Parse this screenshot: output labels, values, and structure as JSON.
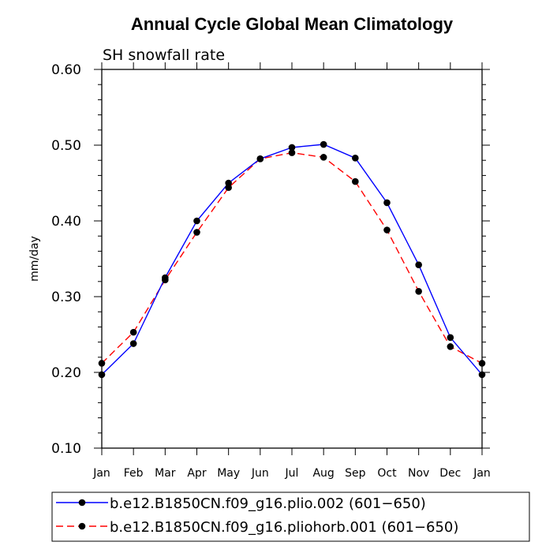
{
  "chart_data": {
    "type": "line",
    "title": "Annual Cycle Global Mean Climatology",
    "subtitle": "SH snowfall rate",
    "xlabel": "",
    "ylabel": "mm/day",
    "ylim": [
      0.1,
      0.6
    ],
    "yticks": [
      "0.10",
      "0.20",
      "0.30",
      "0.40",
      "0.50",
      "0.60"
    ],
    "categories": [
      "Jan",
      "Feb",
      "Mar",
      "Apr",
      "May",
      "Jun",
      "Jul",
      "Aug",
      "Sep",
      "Oct",
      "Nov",
      "Dec",
      "Jan"
    ],
    "series": [
      {
        "name": "b.e12.B1850CN.f09_g16.plio.002 (601−650)",
        "color": "#0000ff",
        "style": "solid",
        "values": [
          0.197,
          0.238,
          0.325,
          0.4,
          0.45,
          0.482,
          0.497,
          0.501,
          0.483,
          0.424,
          0.342,
          0.246,
          0.197
        ]
      },
      {
        "name": "b.e12.B1850CN.f09_g16.pliohorb.001 (601−650)",
        "color": "#ff0000",
        "style": "dashed",
        "values": [
          0.212,
          0.253,
          0.322,
          0.385,
          0.444,
          0.482,
          0.49,
          0.484,
          0.452,
          0.388,
          0.307,
          0.234,
          0.212
        ]
      }
    ]
  }
}
